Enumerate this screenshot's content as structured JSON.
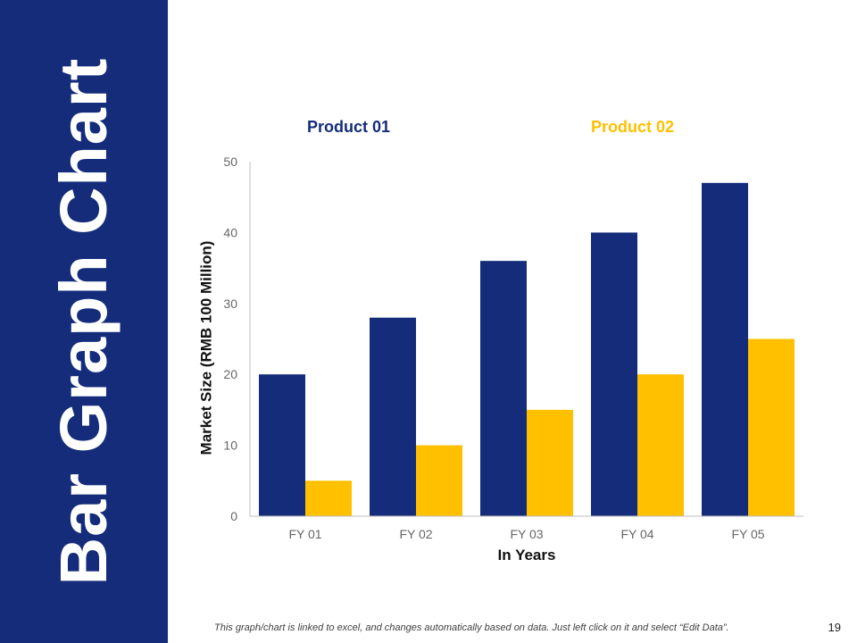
{
  "slide": {
    "title": "Bar Graph Chart",
    "footer_note": "This graph/chart is linked to excel, and changes automatically based on data. Just left click on it and select “Edit Data”.",
    "page_number": "19"
  },
  "colors": {
    "sidebar": "#142c7a",
    "product_01": "#142c7a",
    "product_02": "#ffc000",
    "axis": "#bfbfbf"
  },
  "chart_data": {
    "type": "bar",
    "title": "",
    "xlabel": "In Years",
    "ylabel": "Market Size (RMB 100 Million)",
    "categories": [
      "FY 01",
      "FY 02",
      "FY 03",
      "FY 04",
      "FY 05"
    ],
    "series": [
      {
        "name": "Product 01",
        "values": [
          20,
          28,
          36,
          40,
          47
        ]
      },
      {
        "name": "Product 02",
        "values": [
          5,
          10,
          15,
          20,
          25
        ]
      }
    ],
    "ylim": [
      0,
      50
    ],
    "yticks": [
      0,
      10,
      20,
      30,
      40,
      50
    ],
    "grid": false,
    "legend_position": "top"
  }
}
